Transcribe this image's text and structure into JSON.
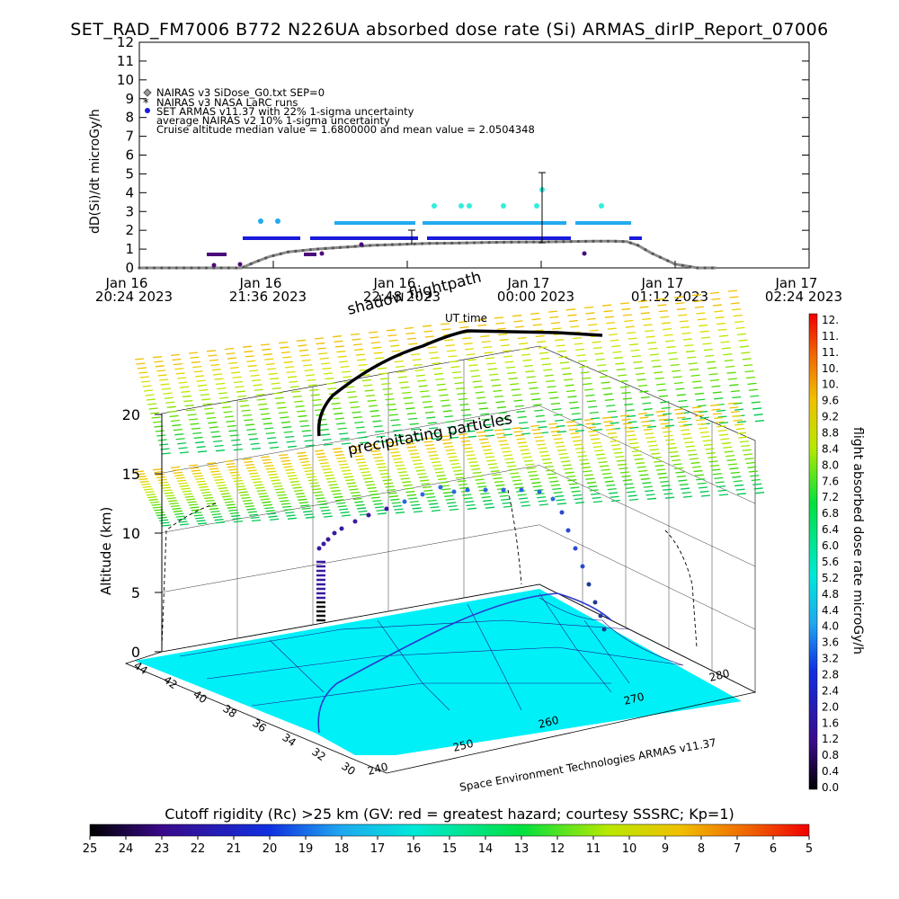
{
  "title": "SET_RAD_FM7006   B772 N226UA absorbed dose rate (Si) ARMAS_dirIP_Report_07006",
  "colors": {
    "nairas_sidose": "#8a8a8a",
    "nairas_larc": "#000000",
    "armas_dark": "#1a1adc",
    "armas_light": "#22aaee",
    "armas_cyan": "#33eedd",
    "low_points": "#4a0a7a",
    "land": "#00f0f8",
    "flight_surface": "#000000"
  },
  "chart_data": [
    {
      "type": "line",
      "ylabel": "dD(Si)/dt microGy/h",
      "yticks": [
        "0",
        "1",
        "2",
        "3",
        "4",
        "5",
        "6",
        "7",
        "8",
        "9",
        "10",
        "11",
        "12"
      ],
      "ylim": [
        0,
        12
      ],
      "xticks": [
        {
          "d": "Jan 16",
          "t": "20:24 2023"
        },
        {
          "d": "Jan 16",
          "t": "21:36 2023"
        },
        {
          "d": "Jan 16",
          "t": "22:48 2023"
        },
        {
          "d": "Jan 17",
          "t": "00:00 2023"
        },
        {
          "d": "Jan 17",
          "t": "01:12 2023"
        },
        {
          "d": "Jan 17",
          "t": "02:24 2023"
        }
      ],
      "legend": [
        "NAIRAS v3 SiDose_G0.txt SEP=0",
        "NAIRAS v3 NASA LaRC runs",
        "SET ARMAS v11.37 with 22% 1-sigma uncertainty",
        "average NAIRAS v2 10% 1-sigma uncertainty",
        "Cruise altitude median value = 1.6800000 and mean value = 2.0504348"
      ],
      "series": [
        {
          "name": "NAIRAS v3 SiDose_G0.txt SEP=0",
          "x_minutes": [
            0,
            30,
            55,
            62,
            70,
            80,
            95,
            110,
            125,
            140,
            155,
            170,
            185,
            200,
            215,
            230,
            245,
            255,
            262,
            268,
            275,
            288,
            300,
            310
          ],
          "values": [
            0,
            0,
            0,
            0.3,
            0.6,
            0.85,
            1.0,
            1.1,
            1.2,
            1.25,
            1.3,
            1.32,
            1.35,
            1.37,
            1.38,
            1.4,
            1.42,
            1.42,
            1.4,
            1.2,
            0.8,
            0.2,
            0,
            0
          ]
        },
        {
          "name": "SET ARMAS v11.37 with 22% 1-sigma uncertainty",
          "x_minutes": [
            50,
            55,
            60,
            70,
            80,
            90,
            100,
            110,
            120,
            130,
            140,
            150,
            160,
            170,
            180,
            190,
            200,
            210,
            220,
            230,
            240,
            250,
            260,
            265,
            270,
            280,
            290
          ],
          "values": [
            0.8,
            0.8,
            0.8,
            1.1,
            1.7,
            1.7,
            1.7,
            1.7,
            1.7,
            1.7,
            1.7,
            1.7,
            2.5,
            1.8,
            2.5,
            2.5,
            2.5,
            2.5,
            2.5,
            2.5,
            2.5,
            2.5,
            2.5,
            1.7,
            1.7,
            0,
            0
          ]
        }
      ]
    },
    {
      "type": "scatter",
      "zlabel": "Altitude (km)",
      "zticks": [
        "0",
        "5",
        "10",
        "15",
        "20"
      ],
      "lat_ticks": [
        "44",
        "42",
        "40",
        "38",
        "36",
        "34",
        "32",
        "30"
      ],
      "lon_ticks": [
        "240",
        "250",
        "260",
        "270",
        "280"
      ],
      "labels": {
        "flightpath": "shadow flightpath",
        "ut": "UT time",
        "precip": "precipitating particles",
        "credit": "Space Environment Technologies ARMAS v11.37"
      },
      "colorbar_label": "flight absorbed dose rate microGy/h",
      "colorbar_ticks": [
        "12.",
        "11.",
        "11.",
        "10.",
        "10.",
        "9.6",
        "9.2",
        "8.8",
        "8.4",
        "8.0",
        "7.6",
        "7.2",
        "6.8",
        "6.4",
        "6.0",
        "5.6",
        "5.2",
        "4.8",
        "4.4",
        "4.0",
        "3.6",
        "3.2",
        "2.8",
        "2.4",
        "2.0",
        "1.6",
        "1.2",
        "0.8",
        "0.4",
        "0.0"
      ]
    }
  ],
  "bottom_colorbar": {
    "title": "Cutoff rigidity (Rc) >25 km (GV: red = greatest hazard; courtesy SSSRC; Kp=1)",
    "ticks": [
      "25",
      "24",
      "23",
      "22",
      "21",
      "20",
      "19",
      "18",
      "17",
      "16",
      "15",
      "14",
      "13",
      "12",
      "11",
      "10",
      "9",
      "8",
      "7",
      "6",
      "5"
    ]
  }
}
